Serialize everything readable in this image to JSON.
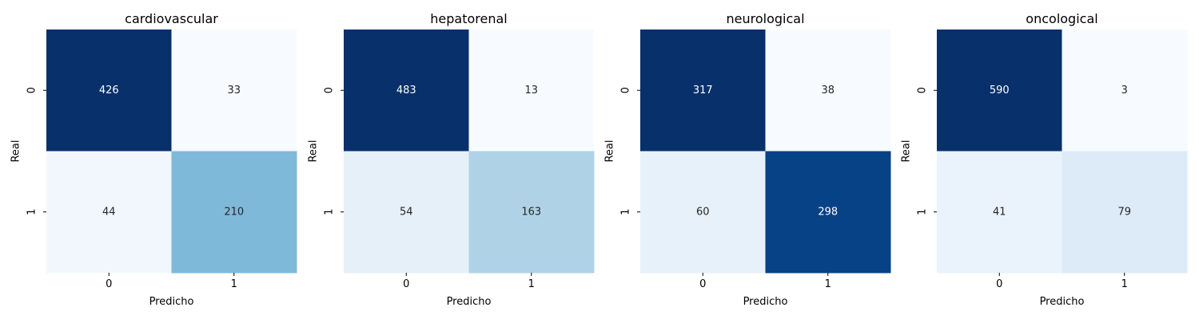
{
  "chart_data": [
    {
      "type": "heatmap",
      "title": "cardiovascular",
      "xlabel": "Predicho",
      "ylabel": "Real",
      "x_categories": [
        "0",
        "1"
      ],
      "y_categories": [
        "0",
        "1"
      ],
      "values": [
        [
          426,
          33
        ],
        [
          44,
          210
        ]
      ],
      "colormap": "Blues",
      "colorbar": false,
      "grid": false
    },
    {
      "type": "heatmap",
      "title": "hepatorenal",
      "xlabel": "Predicho",
      "ylabel": "Real",
      "x_categories": [
        "0",
        "1"
      ],
      "y_categories": [
        "0",
        "1"
      ],
      "values": [
        [
          483,
          13
        ],
        [
          54,
          163
        ]
      ],
      "colormap": "Blues",
      "colorbar": false,
      "grid": false
    },
    {
      "type": "heatmap",
      "title": "neurological",
      "xlabel": "Predicho",
      "ylabel": "Real",
      "x_categories": [
        "0",
        "1"
      ],
      "y_categories": [
        "0",
        "1"
      ],
      "values": [
        [
          317,
          38
        ],
        [
          60,
          298
        ]
      ],
      "colormap": "Blues",
      "colorbar": false,
      "grid": false
    },
    {
      "type": "heatmap",
      "title": "oncological",
      "xlabel": "Predicho",
      "ylabel": "Real",
      "x_categories": [
        "0",
        "1"
      ],
      "y_categories": [
        "0",
        "1"
      ],
      "values": [
        [
          590,
          3
        ],
        [
          41,
          79
        ]
      ],
      "colormap": "Blues",
      "colorbar": false,
      "grid": false
    }
  ]
}
